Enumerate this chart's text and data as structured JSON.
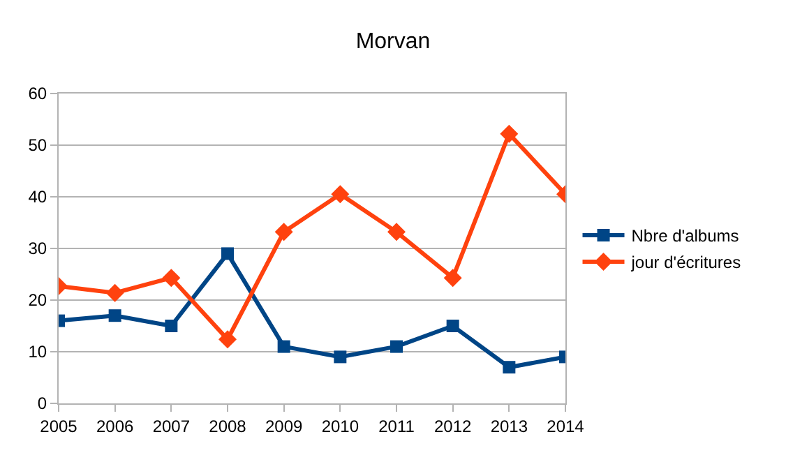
{
  "chart_data": {
    "type": "line",
    "title": "Morvan",
    "categories": [
      "2005",
      "2006",
      "2007",
      "2008",
      "2009",
      "2010",
      "2011",
      "2012",
      "2013",
      "2014"
    ],
    "series": [
      {
        "name": "Nbre d'albums",
        "color": "#004586",
        "marker": "square",
        "values": [
          16,
          17,
          15,
          29,
          11,
          9,
          11,
          15,
          7,
          9
        ]
      },
      {
        "name": "jour d'écritures",
        "color": "#ff420e",
        "marker": "diamond",
        "values": [
          22.7,
          21.4,
          24.3,
          12.4,
          33.2,
          40.5,
          33.2,
          24.3,
          52.2,
          40.5
        ]
      }
    ],
    "ylim": [
      0,
      60
    ],
    "yticks": [
      0,
      10,
      20,
      30,
      40,
      50,
      60
    ],
    "grid": "y",
    "legend": "right",
    "line_style": "solid"
  }
}
